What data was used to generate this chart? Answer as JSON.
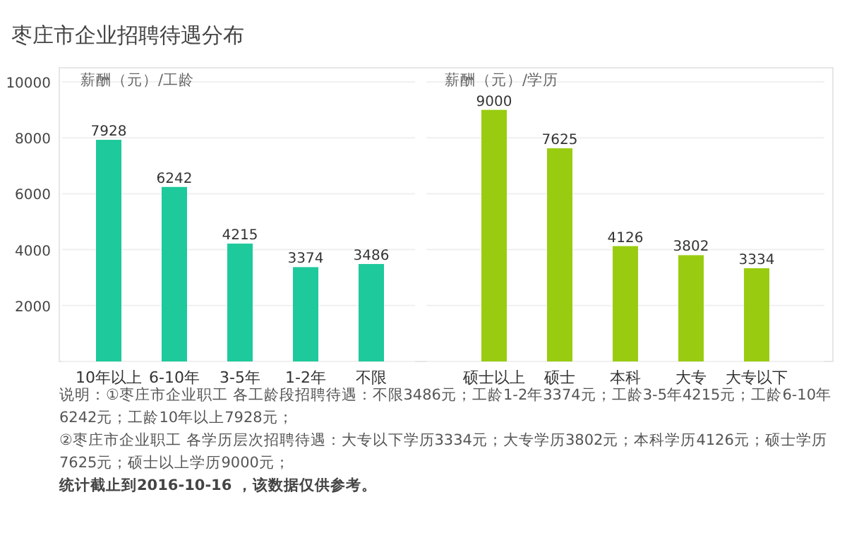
{
  "chart_data": [
    {
      "type": "bar",
      "title": "枣庄市企业招聘待遇分布",
      "subtitle": "薪酬（元）/工龄",
      "categories": [
        "10年以上",
        "6-10年",
        "3-5年",
        "1-2年",
        "不限"
      ],
      "values": [
        7928,
        6242,
        4215,
        3374,
        3486
      ],
      "color": "#1ec99b",
      "ylim": [
        0,
        10000
      ],
      "yticks": [
        {
          "value": 0,
          "label": null
        },
        2000,
        4000,
        6000,
        8000,
        10000
      ],
      "grid": "y",
      "data_labels": true,
      "annotations": [
        "说明：①枣庄市企业职工 各工龄段招聘待遇：不限3486元；工龄1-2年3374元；工龄3-5年4215元；工龄6-10年6242元；工龄10年以上7928元；",
        "②枣庄市企业职工 各学历层次招聘待遇：大专以下学历3334元；大专学历3802元；本科学历4126元；硕士学历7625元；硕士以上学历9000元；",
        "统计截止到2016-10-16 ，该数据仅供参考。"
      ]
    },
    {
      "type": "bar",
      "subtitle": "薪酬（元）/学历",
      "categories": [
        "硕士以上",
        "硕士",
        "本科",
        "大专",
        "大专以下"
      ],
      "values": [
        9000,
        7625,
        4126,
        3802,
        3334
      ],
      "color": "#99cc11",
      "ylim": [
        0,
        10000
      ],
      "yticks": [
        {
          "value": 0,
          "label": null
        },
        2000,
        4000,
        6000,
        8000,
        10000
      ],
      "grid": "y",
      "data_labels": true,
      "tick_labels": "x"
    }
  ]
}
